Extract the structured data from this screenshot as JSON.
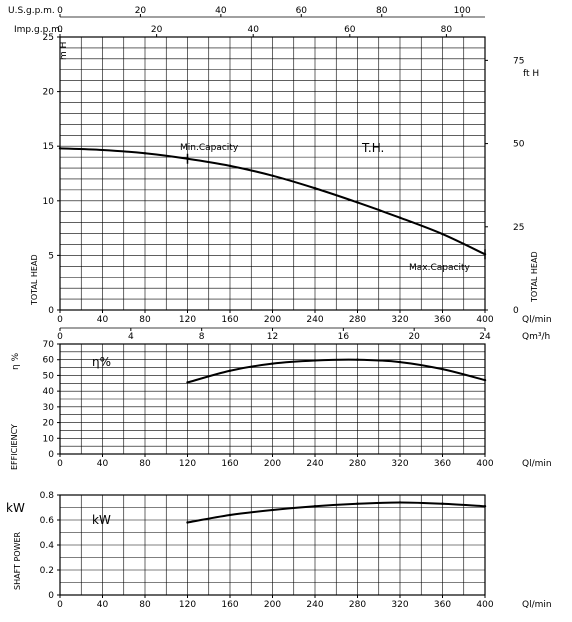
{
  "chart_data": [
    {
      "type": "line",
      "panel": "head",
      "x_label": "Ql/min",
      "y_label_left": "TOTAL HEAD",
      "y_unit_left": "m H",
      "y_label_right": "TOTAL HEAD",
      "y_unit_right": "ft H",
      "curve_label": "T.H.",
      "xlim": [
        0,
        400
      ],
      "ylim": [
        0,
        25
      ],
      "x_ticks": [
        0,
        40,
        80,
        120,
        160,
        200,
        240,
        280,
        320,
        360,
        400
      ],
      "y_ticks": [
        0,
        5,
        10,
        15,
        20,
        25
      ],
      "right_ticks": [
        0,
        25,
        50,
        75
      ],
      "top_axis_1": {
        "label": "U.S.g.p.m.",
        "ticks": [
          0,
          20,
          40,
          60,
          80,
          100
        ],
        "lpm_per_unit": 3.785
      },
      "top_axis_2": {
        "label": "Imp.g.p.m.",
        "ticks": [
          0,
          20,
          40,
          60,
          80
        ],
        "lpm_per_unit": 4.546
      },
      "bottom_axis_2": {
        "label": "Qm³/h",
        "ticks": [
          0,
          4,
          8,
          12,
          16,
          20,
          24
        ],
        "lpm_per_unit": 16.667
      },
      "series": [
        {
          "x": [
            0,
            40,
            80,
            120,
            160,
            200,
            240,
            280,
            320,
            360,
            400
          ],
          "y": [
            14.8,
            14.65,
            14.35,
            13.85,
            13.2,
            12.3,
            11.15,
            9.85,
            8.45,
            6.95,
            5.1
          ]
        }
      ],
      "annotations": [
        {
          "text": "Min.Capacity",
          "x": 120,
          "y": 13.85
        },
        {
          "text": "Max.Capacity",
          "x": 400,
          "y": 5.1
        }
      ]
    },
    {
      "type": "line",
      "panel": "efficiency",
      "x_label": "Ql/min",
      "y_label": "EFFICIENCY",
      "y_unit": "η %",
      "curve_label": "η%",
      "xlim": [
        0,
        400
      ],
      "ylim": [
        0,
        70
      ],
      "x_ticks": [
        0,
        40,
        80,
        120,
        160,
        200,
        240,
        280,
        320,
        360,
        400
      ],
      "y_ticks": [
        0,
        10,
        20,
        30,
        40,
        50,
        60,
        70
      ],
      "series": [
        {
          "x": [
            120,
            160,
            200,
            240,
            280,
            320,
            360,
            400
          ],
          "y": [
            45.5,
            53,
            57.5,
            59.5,
            60,
            58.5,
            54,
            47
          ]
        }
      ]
    },
    {
      "type": "line",
      "panel": "power",
      "x_label": "Ql/min",
      "y_label": "SHAFT POWER",
      "y_unit": "kW",
      "curve_label": "kW",
      "xlim": [
        0,
        400
      ],
      "ylim": [
        0,
        0.8
      ],
      "x_ticks": [
        0,
        40,
        80,
        120,
        160,
        200,
        240,
        280,
        320,
        360,
        400
      ],
      "y_ticks": [
        0,
        0.2,
        0.4,
        0.6,
        0.8
      ],
      "series": [
        {
          "x": [
            120,
            160,
            200,
            240,
            280,
            320,
            360,
            400
          ],
          "y": [
            0.58,
            0.64,
            0.68,
            0.71,
            0.73,
            0.74,
            0.73,
            0.71
          ]
        }
      ]
    }
  ]
}
